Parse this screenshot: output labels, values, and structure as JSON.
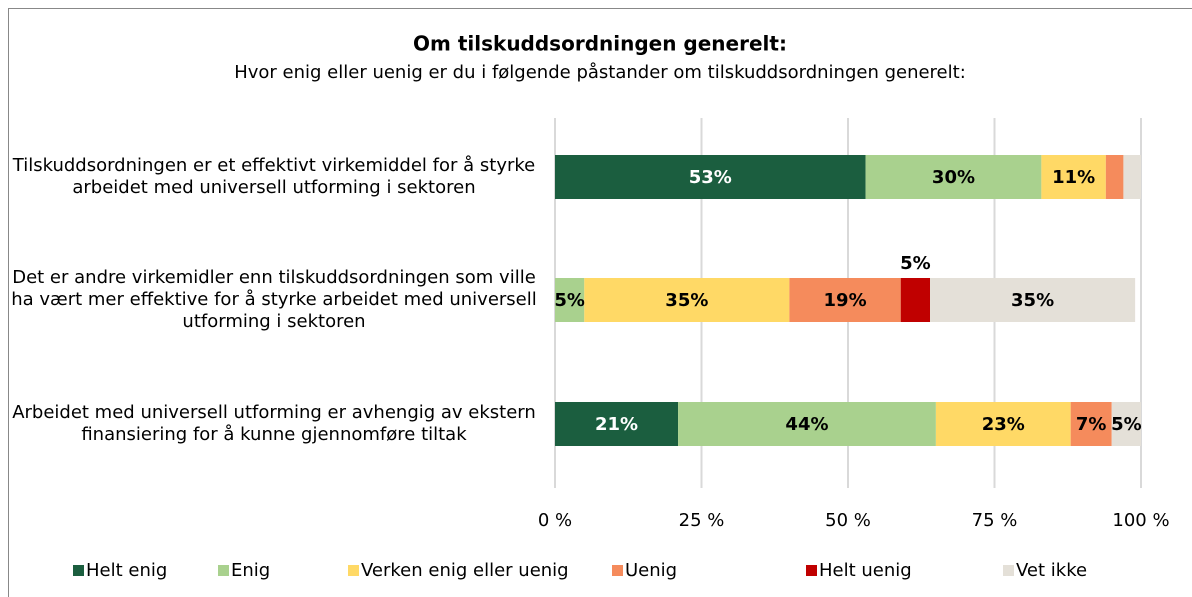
{
  "chart_data": {
    "type": "stacked-bar-horizontal",
    "title": "Om tilskuddsordningen generelt:",
    "subtitle": "Hvor enig eller uenig er du i følgende påstander om tilskuddsordningen generelt:",
    "categories": [
      "Tilskuddsordningen er et effektivt virkemiddel for å styrke arbeidet med universell utforming i sektoren",
      "Det er andre virkemidler enn tilskuddsordningen som ville ha vært mer effektive for å styrke arbeidet med universell utforming i sektoren",
      "Arbeidet med universell utforming er avhengig av ekstern finansiering for å kunne gjennomføre tiltak"
    ],
    "series": [
      {
        "name": "Helt enig",
        "color": "#1b5e3f",
        "values": [
          53,
          0,
          21
        ],
        "value_labels": [
          "53%",
          null,
          "21%"
        ]
      },
      {
        "name": "Enig",
        "color": "#a9d18e",
        "values": [
          30,
          5,
          44
        ],
        "value_labels": [
          "30%",
          "5%",
          "44%"
        ]
      },
      {
        "name": "Verken enig eller uenig",
        "color": "#ffd966",
        "values": [
          11,
          35,
          23
        ],
        "value_labels": [
          "11%",
          "35%",
          "23%"
        ]
      },
      {
        "name": "Uenig",
        "color": "#f58b5c",
        "values": [
          3,
          19,
          7
        ],
        "value_labels": [
          null,
          "19%",
          "7%"
        ]
      },
      {
        "name": "Helt uenig",
        "color": "#c00000",
        "values": [
          0,
          5,
          0
        ],
        "value_labels": [
          null,
          "5%",
          null
        ]
      },
      {
        "name": "Vet ikke",
        "color": "#e4e0d8",
        "values": [
          3,
          35,
          5
        ],
        "value_labels": [
          null,
          "35%",
          "5%"
        ]
      }
    ],
    "xlim": [
      0,
      100
    ],
    "xticks": [
      {
        "value": 0,
        "label": "0 %"
      },
      {
        "value": 25,
        "label": "25 %"
      },
      {
        "value": 50,
        "label": "50 %"
      },
      {
        "value": 75,
        "label": "75 %"
      },
      {
        "value": 100,
        "label": "100 %"
      }
    ],
    "grid": true,
    "legend": "bottom"
  }
}
